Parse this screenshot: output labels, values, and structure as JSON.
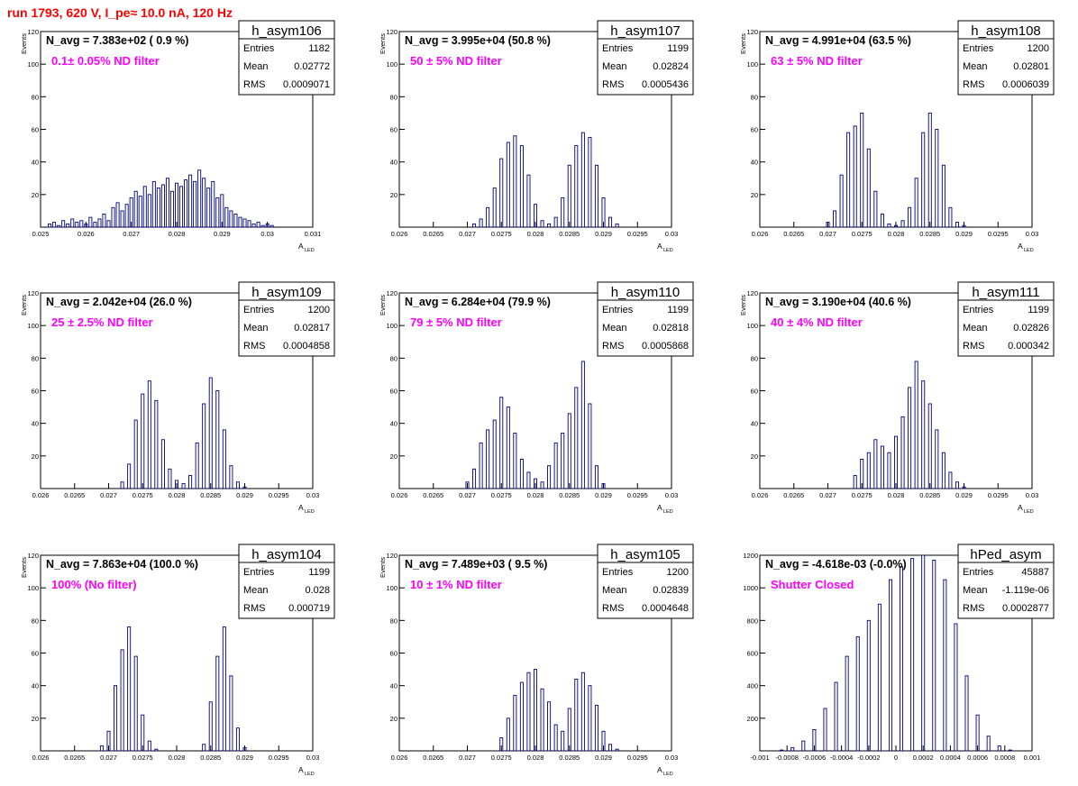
{
  "page_title": "run 1793,   620 V, I_pe≈ 10.0 nA, 120 Hz",
  "chart_data": [
    {
      "type": "bar",
      "name": "h_asym106",
      "navg": "N_avg = 7.383e+02 ( 0.9 %)",
      "filter": "0.1± 0.05% ND filter",
      "stats": [
        [
          "Entries",
          "1182"
        ],
        [
          "Mean",
          "0.02772"
        ],
        [
          "RMS",
          "0.0009071"
        ]
      ],
      "xlabel": "A",
      "xlabel_sub": "LED",
      "ylabel": "Events",
      "xlim": [
        0.025,
        0.031
      ],
      "ylim": [
        0,
        120
      ],
      "xticks": [
        0.025,
        0.026,
        0.027,
        0.028,
        0.029,
        0.03,
        0.031
      ],
      "xtick_labels": [
        "0.025",
        "0.026",
        "0.027",
        "0.028",
        "0.029",
        "0.03",
        "0.031"
      ],
      "yticks": [
        20,
        40,
        60,
        80,
        100,
        120
      ],
      "ytick_labels": [
        "20",
        "40",
        "60",
        "80",
        "100",
        "120"
      ],
      "x": [
        0.0251,
        0.0252,
        0.0253,
        0.0254,
        0.0255,
        0.0256,
        0.0257,
        0.0258,
        0.0259,
        0.026,
        0.0261,
        0.0262,
        0.0263,
        0.0264,
        0.0265,
        0.0266,
        0.0267,
        0.0268,
        0.0269,
        0.027,
        0.0271,
        0.0272,
        0.0273,
        0.0274,
        0.0275,
        0.0276,
        0.0277,
        0.0278,
        0.0279,
        0.028,
        0.0281,
        0.0282,
        0.0283,
        0.0284,
        0.0285,
        0.0286,
        0.0287,
        0.0288,
        0.0289,
        0.029,
        0.0291,
        0.0292,
        0.0293,
        0.0294,
        0.0295,
        0.0296,
        0.0297,
        0.0298,
        0.0299,
        0.03,
        0.0301
      ],
      "values": [
        0,
        2,
        3,
        1,
        4,
        2,
        5,
        3,
        4,
        2,
        6,
        3,
        5,
        8,
        4,
        12,
        15,
        10,
        14,
        18,
        22,
        19,
        25,
        20,
        28,
        24,
        26,
        30,
        22,
        27,
        25,
        29,
        32,
        28,
        35,
        30,
        24,
        28,
        18,
        20,
        12,
        10,
        8,
        6,
        5,
        4,
        2,
        3,
        1,
        2,
        1
      ]
    },
    {
      "type": "bar",
      "name": "h_asym107",
      "navg": "N_avg = 3.995e+04 (50.8 %)",
      "filter": "50 ± 5% ND filter",
      "stats": [
        [
          "Entries",
          "1199"
        ],
        [
          "Mean",
          "0.02824"
        ],
        [
          "RMS",
          "0.0005436"
        ]
      ],
      "xlabel": "A",
      "xlabel_sub": "LED",
      "ylabel": "Events",
      "xlim": [
        0.026,
        0.03
      ],
      "ylim": [
        0,
        120
      ],
      "xticks": [
        0.026,
        0.0265,
        0.027,
        0.0275,
        0.028,
        0.0285,
        0.029,
        0.0295,
        0.03
      ],
      "xtick_labels": [
        "0.026",
        "0.0265",
        "0.027",
        "0.0275",
        "0.028",
        "0.0285",
        "0.029",
        "0.0295",
        "0.03"
      ],
      "yticks": [
        20,
        40,
        60,
        80,
        100,
        120
      ],
      "ytick_labels": [
        "20",
        "40",
        "60",
        "80",
        "100",
        "120"
      ],
      "x": [
        0.0271,
        0.0272,
        0.0273,
        0.0274,
        0.0275,
        0.0276,
        0.0277,
        0.0278,
        0.0279,
        0.028,
        0.0281,
        0.0282,
        0.0283,
        0.0284,
        0.0285,
        0.0286,
        0.0287,
        0.0288,
        0.0289,
        0.029,
        0.0291,
        0.0292
      ],
      "values": [
        2,
        5,
        12,
        24,
        42,
        52,
        56,
        50,
        32,
        14,
        4,
        2,
        6,
        18,
        38,
        50,
        58,
        55,
        38,
        18,
        6,
        2
      ]
    },
    {
      "type": "bar",
      "name": "h_asym108",
      "navg": "N_avg = 4.991e+04 (63.5 %)",
      "filter": "63 ± 5% ND filter",
      "stats": [
        [
          "Entries",
          "1200"
        ],
        [
          "Mean",
          "0.02801"
        ],
        [
          "RMS",
          "0.0006039"
        ]
      ],
      "xlabel": "A",
      "xlabel_sub": "LED",
      "ylabel": "Events",
      "xlim": [
        0.026,
        0.03
      ],
      "ylim": [
        0,
        120
      ],
      "xticks": [
        0.026,
        0.0265,
        0.027,
        0.0275,
        0.028,
        0.0285,
        0.029,
        0.0295,
        0.03
      ],
      "xtick_labels": [
        "0.026",
        "0.0265",
        "0.027",
        "0.0275",
        "0.028",
        "0.0285",
        "0.029",
        "0.0295",
        "0.03"
      ],
      "yticks": [
        20,
        40,
        60,
        80,
        100,
        120
      ],
      "ytick_labels": [
        "20",
        "40",
        "60",
        "80",
        "100",
        "120"
      ],
      "x": [
        0.027,
        0.0271,
        0.0272,
        0.0273,
        0.0274,
        0.0275,
        0.0276,
        0.0277,
        0.0278,
        0.0279,
        0.028,
        0.0281,
        0.0282,
        0.0283,
        0.0284,
        0.0285,
        0.0286,
        0.0287,
        0.0288,
        0.0289,
        0.029
      ],
      "values": [
        3,
        10,
        32,
        58,
        62,
        70,
        48,
        22,
        8,
        2,
        1,
        4,
        12,
        30,
        58,
        70,
        60,
        38,
        12,
        3,
        1
      ]
    },
    {
      "type": "bar",
      "name": "h_asym109",
      "navg": "N_avg = 2.042e+04 (26.0 %)",
      "filter": "25 ± 2.5% ND filter",
      "stats": [
        [
          "Entries",
          "1200"
        ],
        [
          "Mean",
          "0.02817"
        ],
        [
          "RMS",
          "0.0004858"
        ]
      ],
      "xlabel": "A",
      "xlabel_sub": "LED",
      "ylabel": "Events",
      "xlim": [
        0.026,
        0.03
      ],
      "ylim": [
        0,
        120
      ],
      "xticks": [
        0.026,
        0.0265,
        0.027,
        0.0275,
        0.028,
        0.0285,
        0.029,
        0.0295,
        0.03
      ],
      "xtick_labels": [
        "0.026",
        "0.0265",
        "0.027",
        "0.0275",
        "0.028",
        "0.0285",
        "0.029",
        "0.0295",
        "0.03"
      ],
      "yticks": [
        20,
        40,
        60,
        80,
        100,
        120
      ],
      "ytick_labels": [
        "20",
        "40",
        "60",
        "80",
        "100",
        "120"
      ],
      "x": [
        0.0272,
        0.0273,
        0.0274,
        0.0275,
        0.0276,
        0.0277,
        0.0278,
        0.0279,
        0.028,
        0.0281,
        0.0282,
        0.0283,
        0.0284,
        0.0285,
        0.0286,
        0.0287,
        0.0288,
        0.0289,
        0.029
      ],
      "values": [
        4,
        15,
        42,
        58,
        66,
        54,
        30,
        12,
        5,
        3,
        8,
        28,
        52,
        68,
        60,
        36,
        14,
        4,
        1
      ]
    },
    {
      "type": "bar",
      "name": "h_asym110",
      "navg": "N_avg = 6.284e+04 (79.9 %)",
      "filter": "79 ± 5% ND filter",
      "stats": [
        [
          "Entries",
          "1199"
        ],
        [
          "Mean",
          "0.02818"
        ],
        [
          "RMS",
          "0.0005868"
        ]
      ],
      "xlabel": "A",
      "xlabel_sub": "LED",
      "ylabel": "Events",
      "xlim": [
        0.026,
        0.03
      ],
      "ylim": [
        0,
        120
      ],
      "xticks": [
        0.026,
        0.0265,
        0.027,
        0.0275,
        0.028,
        0.0285,
        0.029,
        0.0295,
        0.03
      ],
      "xtick_labels": [
        "0.026",
        "0.0265",
        "0.027",
        "0.0275",
        "0.028",
        "0.0285",
        "0.029",
        "0.0295",
        "0.03"
      ],
      "yticks": [
        20,
        40,
        60,
        80,
        100,
        120
      ],
      "ytick_labels": [
        "20",
        "40",
        "60",
        "80",
        "100",
        "120"
      ],
      "x": [
        0.027,
        0.0271,
        0.0272,
        0.0273,
        0.0274,
        0.0275,
        0.0276,
        0.0277,
        0.0278,
        0.0279,
        0.028,
        0.0281,
        0.0282,
        0.0283,
        0.0284,
        0.0285,
        0.0286,
        0.0287,
        0.0288,
        0.0289,
        0.029
      ],
      "values": [
        4,
        12,
        28,
        36,
        42,
        56,
        50,
        34,
        18,
        10,
        6,
        4,
        14,
        28,
        34,
        46,
        62,
        78,
        52,
        14,
        3
      ]
    },
    {
      "type": "bar",
      "name": "h_asym111",
      "navg": "N_avg = 3.190e+04 (40.6 %)",
      "filter": "40 ± 4% ND filter",
      "stats": [
        [
          "Entries",
          "1199"
        ],
        [
          "Mean",
          "0.02826"
        ],
        [
          "RMS",
          "0.000342"
        ]
      ],
      "xlabel": "A",
      "xlabel_sub": "LED",
      "ylabel": "Events",
      "xlim": [
        0.026,
        0.03
      ],
      "ylim": [
        0,
        120
      ],
      "xticks": [
        0.026,
        0.0265,
        0.027,
        0.0275,
        0.028,
        0.0285,
        0.029,
        0.0295,
        0.03
      ],
      "xtick_labels": [
        "0.026",
        "0.0265",
        "0.027",
        "0.0275",
        "0.028",
        "0.0285",
        "0.029",
        "0.0295",
        "0.03"
      ],
      "yticks": [
        20,
        40,
        60,
        80,
        100,
        120
      ],
      "ytick_labels": [
        "20",
        "40",
        "60",
        "80",
        "100",
        "120"
      ],
      "x": [
        0.0274,
        0.0275,
        0.0276,
        0.0277,
        0.0278,
        0.0279,
        0.028,
        0.0281,
        0.0282,
        0.0283,
        0.0284,
        0.0285,
        0.0286,
        0.0287,
        0.0288,
        0.0289,
        0.029
      ],
      "values": [
        8,
        18,
        22,
        30,
        26,
        22,
        32,
        44,
        62,
        78,
        66,
        52,
        36,
        22,
        10,
        4,
        1
      ]
    },
    {
      "type": "bar",
      "name": "h_asym104",
      "navg": "N_avg = 7.863e+04 (100.0 %)",
      "filter": "100% (No filter)",
      "stats": [
        [
          "Entries",
          "1199"
        ],
        [
          "Mean",
          "0.028"
        ],
        [
          "RMS",
          "0.000719"
        ]
      ],
      "xlabel": "A",
      "xlabel_sub": "LED",
      "ylabel": "Events",
      "xlim": [
        0.026,
        0.03
      ],
      "ylim": [
        0,
        120
      ],
      "xticks": [
        0.026,
        0.0265,
        0.027,
        0.0275,
        0.028,
        0.0285,
        0.029,
        0.0295,
        0.03
      ],
      "xtick_labels": [
        "0.026",
        "0.0265",
        "0.027",
        "0.0275",
        "0.028",
        "0.0285",
        "0.029",
        "0.0295",
        "0.03"
      ],
      "yticks": [
        20,
        40,
        60,
        80,
        100,
        120
      ],
      "ytick_labels": [
        "20",
        "40",
        "60",
        "80",
        "100",
        "120"
      ],
      "x": [
        0.0269,
        0.027,
        0.0271,
        0.0272,
        0.0273,
        0.0274,
        0.0275,
        0.0276,
        0.0277,
        0.0284,
        0.0285,
        0.0286,
        0.0287,
        0.0288,
        0.0289,
        0.029
      ],
      "values": [
        3,
        12,
        40,
        62,
        76,
        58,
        22,
        6,
        1,
        4,
        30,
        58,
        76,
        46,
        14,
        2
      ]
    },
    {
      "type": "bar",
      "name": "h_asym105",
      "navg": "N_avg = 7.489e+03 ( 9.5 %)",
      "filter": "10 ± 1% ND filter",
      "stats": [
        [
          "Entries",
          "1200"
        ],
        [
          "Mean",
          "0.02839"
        ],
        [
          "RMS",
          "0.0004648"
        ]
      ],
      "xlabel": "A",
      "xlabel_sub": "LED",
      "ylabel": "Events",
      "xlim": [
        0.026,
        0.03
      ],
      "ylim": [
        0,
        120
      ],
      "xticks": [
        0.026,
        0.0265,
        0.027,
        0.0275,
        0.028,
        0.0285,
        0.029,
        0.0295,
        0.03
      ],
      "xtick_labels": [
        "0.026",
        "0.0265",
        "0.027",
        "0.0275",
        "0.028",
        "0.0285",
        "0.029",
        "0.0295",
        "0.03"
      ],
      "yticks": [
        20,
        40,
        60,
        80,
        100,
        120
      ],
      "ytick_labels": [
        "20",
        "40",
        "60",
        "80",
        "100",
        "120"
      ],
      "x": [
        0.0275,
        0.0276,
        0.0277,
        0.0278,
        0.0279,
        0.028,
        0.0281,
        0.0282,
        0.0283,
        0.0284,
        0.0285,
        0.0286,
        0.0287,
        0.0288,
        0.0289,
        0.029,
        0.0291,
        0.0292
      ],
      "values": [
        8,
        20,
        34,
        42,
        48,
        50,
        38,
        30,
        16,
        12,
        26,
        44,
        48,
        40,
        28,
        12,
        4,
        1
      ]
    },
    {
      "type": "bar",
      "name": "hPed_asym",
      "navg": "N_avg = -4.618e-03 (-0.0%)",
      "filter": "Shutter Closed",
      "stats": [
        [
          "Entries",
          "45887"
        ],
        [
          "Mean",
          "-1.119e-06"
        ],
        [
          "RMS",
          "0.0002877"
        ]
      ],
      "xlabel": "",
      "xlabel_sub": "",
      "ylabel": "",
      "xlim": [
        -0.001,
        0.001
      ],
      "ylim": [
        0,
        1200
      ],
      "xticks": [
        -0.001,
        -0.0008,
        -0.0006,
        -0.0004,
        -0.0002,
        0,
        0.0002,
        0.0004,
        0.0006,
        0.0008,
        0.001
      ],
      "xtick_labels": [
        "-0.001",
        "-0.0008",
        "-0.0006",
        "-0.0004",
        "-0.0002",
        "0",
        "0.0002",
        "0.0004",
        "0.0006",
        "0.0008",
        "0.001"
      ],
      "yticks": [
        200,
        400,
        600,
        800,
        1000,
        1200
      ],
      "ytick_labels": [
        "200",
        "400",
        "600",
        "800",
        "1000",
        "1200"
      ],
      "x": [
        -0.00084,
        -0.00076,
        -0.00068,
        -0.0006,
        -0.00052,
        -0.00044,
        -0.00036,
        -0.00028,
        -0.0002,
        -0.00012,
        -4e-05,
        4e-05,
        0.00012,
        0.0002,
        0.00028,
        0.00036,
        0.00044,
        0.00052,
        0.0006,
        0.00068,
        0.00076,
        0.00084
      ],
      "values": [
        5,
        20,
        60,
        130,
        260,
        420,
        580,
        700,
        800,
        900,
        1050,
        1130,
        1180,
        1200,
        1170,
        1050,
        780,
        460,
        220,
        90,
        30,
        5
      ]
    }
  ]
}
